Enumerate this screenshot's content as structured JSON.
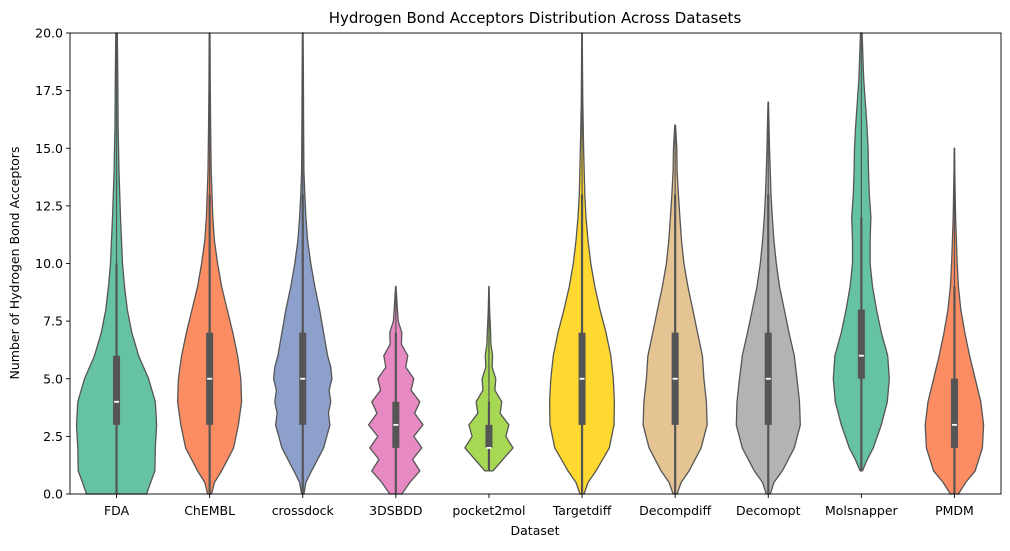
{
  "chart_data": {
    "type": "violin",
    "title": "Hydrogen Bond Acceptors Distribution Across Datasets",
    "xlabel": "Dataset",
    "ylabel": "Number of Hydrogen Bond Acceptors",
    "ylim": [
      0,
      20
    ],
    "yticks": [
      0,
      2.5,
      5,
      7.5,
      10,
      12.5,
      15,
      17.5,
      20
    ],
    "ytick_labels": [
      "0.0",
      "2.5",
      "5.0",
      "7.5",
      "10.0",
      "12.5",
      "15.0",
      "17.5",
      "20.0"
    ],
    "grid": false,
    "categories": [
      "FDA",
      "ChEMBL",
      "crossdock",
      "3DSBDD",
      "pocket2mol",
      "Targetdiff",
      "Decompdiff",
      "Decomopt",
      "Molsnapper",
      "PMDM"
    ],
    "series": [
      {
        "category": "FDA",
        "color": "#66c2a5",
        "min": 0,
        "q1": 3,
        "median": 4,
        "q3": 6,
        "whisker_low": 0,
        "whisker_high": 10,
        "max": 20,
        "density": [
          [
            0,
            0.75
          ],
          [
            0.5,
            0.85
          ],
          [
            1,
            0.96
          ],
          [
            2,
            0.97
          ],
          [
            3,
            1.0
          ],
          [
            4,
            0.97
          ],
          [
            5,
            0.8
          ],
          [
            6,
            0.55
          ],
          [
            7,
            0.38
          ],
          [
            8,
            0.27
          ],
          [
            9,
            0.2
          ],
          [
            10,
            0.15
          ],
          [
            12,
            0.1
          ],
          [
            14,
            0.06
          ],
          [
            16,
            0.04
          ],
          [
            18,
            0.03
          ],
          [
            20,
            0.02
          ]
        ]
      },
      {
        "category": "ChEMBL",
        "color": "#fc8d62",
        "min": 0,
        "q1": 3,
        "median": 5,
        "q3": 7,
        "whisker_low": 0,
        "whisker_high": 13,
        "max": 20,
        "density": [
          [
            0,
            0.05
          ],
          [
            0.5,
            0.12
          ],
          [
            1,
            0.3
          ],
          [
            2,
            0.6
          ],
          [
            3,
            0.72
          ],
          [
            4,
            0.8
          ],
          [
            5,
            0.78
          ],
          [
            6,
            0.7
          ],
          [
            7,
            0.58
          ],
          [
            8,
            0.44
          ],
          [
            9,
            0.3
          ],
          [
            10,
            0.2
          ],
          [
            11,
            0.12
          ],
          [
            12,
            0.08
          ],
          [
            13,
            0.06
          ],
          [
            14,
            0.04
          ],
          [
            16,
            0.025
          ],
          [
            18,
            0.015
          ],
          [
            20,
            0.01
          ]
        ]
      },
      {
        "category": "crossdock",
        "color": "#8da0cb",
        "min": 0,
        "q1": 3,
        "median": 5,
        "q3": 7,
        "whisker_low": 0,
        "whisker_high": 13,
        "max": 20,
        "density": [
          [
            0,
            0.03
          ],
          [
            0.5,
            0.08
          ],
          [
            1,
            0.22
          ],
          [
            2,
            0.52
          ],
          [
            3,
            0.68
          ],
          [
            3.5,
            0.64
          ],
          [
            4,
            0.7
          ],
          [
            4.5,
            0.66
          ],
          [
            5,
            0.73
          ],
          [
            5.5,
            0.7
          ],
          [
            6,
            0.62
          ],
          [
            7,
            0.52
          ],
          [
            8,
            0.42
          ],
          [
            9,
            0.3
          ],
          [
            10,
            0.2
          ],
          [
            11,
            0.12
          ],
          [
            12,
            0.08
          ],
          [
            13,
            0.05
          ],
          [
            14,
            0.03
          ],
          [
            16,
            0.02
          ],
          [
            18,
            0.015
          ],
          [
            20,
            0.01
          ]
        ]
      },
      {
        "category": "3DSBDD",
        "color": "#e78ac3",
        "min": 0,
        "q1": 2,
        "median": 3,
        "q3": 4,
        "whisker_low": 0,
        "whisker_high": 7,
        "max": 9,
        "density": [
          [
            0,
            0.15
          ],
          [
            0.5,
            0.35
          ],
          [
            1,
            0.6
          ],
          [
            1.5,
            0.42
          ],
          [
            2,
            0.65
          ],
          [
            2.5,
            0.45
          ],
          [
            3,
            0.68
          ],
          [
            3.5,
            0.47
          ],
          [
            4,
            0.6
          ],
          [
            4.5,
            0.38
          ],
          [
            5,
            0.45
          ],
          [
            5.5,
            0.25
          ],
          [
            6,
            0.3
          ],
          [
            6.5,
            0.14
          ],
          [
            7,
            0.15
          ],
          [
            7.5,
            0.06
          ],
          [
            8,
            0.04
          ],
          [
            9,
            0.005
          ]
        ]
      },
      {
        "category": "pocket2mol",
        "color": "#a6d854",
        "min": 1,
        "q1": 2,
        "median": 2,
        "q3": 3,
        "whisker_low": 1,
        "whisker_high": 4,
        "max": 9,
        "density": [
          [
            1,
            0.1
          ],
          [
            1.5,
            0.35
          ],
          [
            2,
            0.6
          ],
          [
            2.5,
            0.42
          ],
          [
            3,
            0.5
          ],
          [
            3.5,
            0.28
          ],
          [
            4,
            0.32
          ],
          [
            4.5,
            0.15
          ],
          [
            5,
            0.17
          ],
          [
            5.5,
            0.08
          ],
          [
            6,
            0.09
          ],
          [
            6.5,
            0.05
          ],
          [
            7,
            0.04
          ],
          [
            8,
            0.015
          ],
          [
            9,
            0.005
          ]
        ]
      },
      {
        "category": "Targetdiff",
        "color": "#ffd92f",
        "min": 0,
        "q1": 3,
        "median": 5,
        "q3": 7,
        "whisker_low": 0,
        "whisker_high": 13,
        "max": 20,
        "density": [
          [
            0,
            0.05
          ],
          [
            0.5,
            0.15
          ],
          [
            1,
            0.35
          ],
          [
            2,
            0.68
          ],
          [
            3,
            0.8
          ],
          [
            4,
            0.81
          ],
          [
            5,
            0.78
          ],
          [
            6,
            0.72
          ],
          [
            7,
            0.6
          ],
          [
            8,
            0.45
          ],
          [
            9,
            0.32
          ],
          [
            10,
            0.22
          ],
          [
            11,
            0.15
          ],
          [
            12,
            0.1
          ],
          [
            13,
            0.07
          ],
          [
            15,
            0.04
          ],
          [
            17,
            0.02
          ],
          [
            19,
            0.01
          ],
          [
            20,
            0.005
          ]
        ]
      },
      {
        "category": "Decompdiff",
        "color": "#e5c494",
        "min": 0,
        "q1": 3,
        "median": 5,
        "q3": 7,
        "whisker_low": 0,
        "whisker_high": 13,
        "max": 16,
        "density": [
          [
            0,
            0.05
          ],
          [
            0.5,
            0.15
          ],
          [
            1,
            0.35
          ],
          [
            2,
            0.65
          ],
          [
            3,
            0.8
          ],
          [
            4,
            0.78
          ],
          [
            5,
            0.72
          ],
          [
            6,
            0.68
          ],
          [
            7,
            0.56
          ],
          [
            8,
            0.44
          ],
          [
            9,
            0.32
          ],
          [
            10,
            0.22
          ],
          [
            11,
            0.16
          ],
          [
            12,
            0.12
          ],
          [
            13,
            0.08
          ],
          [
            14,
            0.05
          ],
          [
            15,
            0.04
          ],
          [
            16,
            0.01
          ]
        ]
      },
      {
        "category": "Decomopt",
        "color": "#b3b3b3",
        "min": 0,
        "q1": 3,
        "median": 5,
        "q3": 7,
        "whisker_low": 0,
        "whisker_high": 13,
        "max": 17,
        "density": [
          [
            0,
            0.05
          ],
          [
            0.5,
            0.14
          ],
          [
            1,
            0.35
          ],
          [
            2,
            0.65
          ],
          [
            3,
            0.8
          ],
          [
            4,
            0.78
          ],
          [
            5,
            0.72
          ],
          [
            6,
            0.65
          ],
          [
            7,
            0.52
          ],
          [
            8,
            0.4
          ],
          [
            9,
            0.28
          ],
          [
            10,
            0.2
          ],
          [
            11,
            0.14
          ],
          [
            12,
            0.1
          ],
          [
            13,
            0.07
          ],
          [
            14,
            0.05
          ],
          [
            15,
            0.03
          ],
          [
            16,
            0.02
          ],
          [
            17,
            0.005
          ]
        ]
      },
      {
        "category": "Molsnapper",
        "color": "#66c2a5",
        "min": 1,
        "q1": 5,
        "median": 6,
        "q3": 8,
        "whisker_low": 1,
        "whisker_high": 12,
        "max": 20,
        "density": [
          [
            1,
            0.03
          ],
          [
            1.5,
            0.15
          ],
          [
            2,
            0.3
          ],
          [
            3,
            0.5
          ],
          [
            4,
            0.65
          ],
          [
            5,
            0.7
          ],
          [
            6,
            0.66
          ],
          [
            7,
            0.5
          ],
          [
            8,
            0.38
          ],
          [
            9,
            0.28
          ],
          [
            10,
            0.22
          ],
          [
            11,
            0.22
          ],
          [
            12,
            0.24
          ],
          [
            13,
            0.2
          ],
          [
            14,
            0.18
          ],
          [
            15,
            0.17
          ],
          [
            16,
            0.14
          ],
          [
            17,
            0.1
          ],
          [
            18,
            0.06
          ],
          [
            19,
            0.04
          ],
          [
            20,
            0.02
          ]
        ]
      },
      {
        "category": "PMDM",
        "color": "#fc8d62",
        "min": 0,
        "q1": 2,
        "median": 3,
        "q3": 5,
        "whisker_low": 0,
        "whisker_high": 9,
        "max": 15,
        "density": [
          [
            0,
            0.1
          ],
          [
            0.5,
            0.28
          ],
          [
            1,
            0.52
          ],
          [
            2,
            0.7
          ],
          [
            3,
            0.73
          ],
          [
            4,
            0.66
          ],
          [
            5,
            0.52
          ],
          [
            6,
            0.38
          ],
          [
            7,
            0.26
          ],
          [
            8,
            0.16
          ],
          [
            9,
            0.1
          ],
          [
            10,
            0.07
          ],
          [
            11,
            0.05
          ],
          [
            12,
            0.03
          ],
          [
            13,
            0.02
          ],
          [
            14,
            0.01
          ],
          [
            15,
            0.005
          ]
        ]
      }
    ]
  }
}
